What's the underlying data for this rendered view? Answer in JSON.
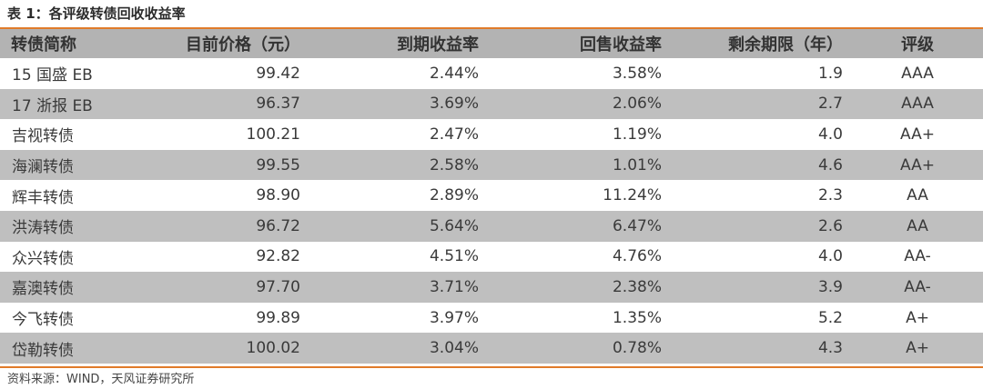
{
  "title": "表 1：各评级转债回收收益率",
  "columns": [
    "转债简称",
    "目前价格（元）",
    "到期收益率",
    "回售收益率",
    "剩余期限（年）",
    "评级"
  ],
  "rows": [
    [
      "15 国盛 EB",
      "99.42",
      "2.44%",
      "3.58%",
      "1.9",
      "AAA"
    ],
    [
      "17 浙报 EB",
      "96.37",
      "3.69%",
      "2.06%",
      "2.7",
      "AAA"
    ],
    [
      "吉视转债",
      "100.21",
      "2.47%",
      "1.19%",
      "4.0",
      "AA+"
    ],
    [
      "海澜转债",
      "99.55",
      "2.58%",
      "1.01%",
      "4.6",
      "AA+"
    ],
    [
      "辉丰转债",
      "98.90",
      "2.89%",
      "11.24%",
      "2.3",
      "AA"
    ],
    [
      "洪涛转债",
      "96.72",
      "5.64%",
      "6.47%",
      "2.6",
      "AA"
    ],
    [
      "众兴转债",
      "92.82",
      "4.51%",
      "4.76%",
      "4.0",
      "AA-"
    ],
    [
      "嘉澳转债",
      "97.70",
      "3.71%",
      "2.38%",
      "3.9",
      "AA-"
    ],
    [
      "今飞转债",
      "99.89",
      "3.97%",
      "1.35%",
      "5.2",
      "A+"
    ],
    [
      "岱勒转债",
      "100.02",
      "3.04%",
      "0.78%",
      "4.3",
      "A+"
    ]
  ],
  "source": "资料来源：WIND，天风证券研究所",
  "colors": {
    "accent_rule": "#e07b2a",
    "header_bg": "#b3b3b3",
    "alt_row_bg": "#bfbfbf"
  }
}
